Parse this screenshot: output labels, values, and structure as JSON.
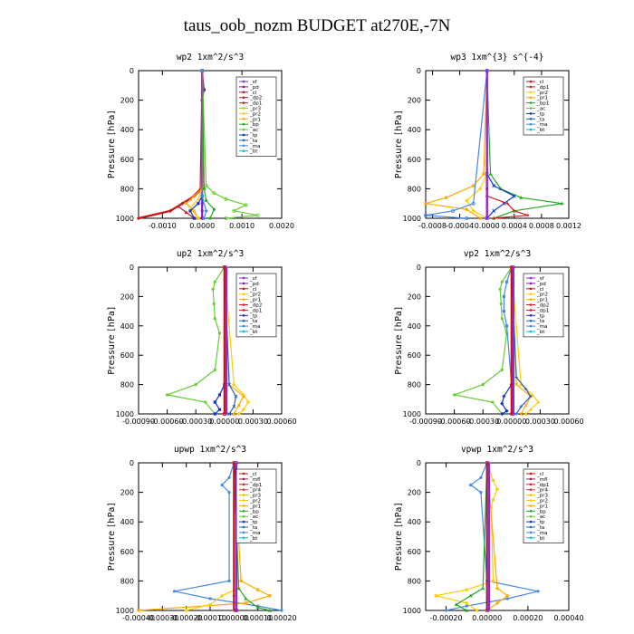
{
  "title": "taus_oob_nozm  BUDGET at270E,-7N",
  "colors": {
    "sf": "#8a2be2",
    "pd": "#7a1fa2",
    "cl": "#cc1111",
    "dp1": "#cc2222",
    "dp2": "#c81e1e",
    "pr1": "#ffaa00",
    "pr2": "#ffcc00",
    "pr3": "#e6c200",
    "pr4": "#d43f3a",
    "bp": "#22aa22",
    "ac": "#66cc33",
    "tp": "#1133cc",
    "ta": "#2266bb",
    "ma": "#4488ee",
    "bt": "#00bcd4",
    "mfl": "#9b1a5a"
  },
  "chart_data": [
    {
      "type": "line",
      "name": "wp2",
      "title": "wp2  1xm^2/s^3",
      "ylabel": "Pressure [hPa]",
      "xlim": [
        -0.0016,
        0.002
      ],
      "ylim": [
        1000,
        0
      ],
      "xticks": [
        -0.001,
        0.0,
        0.001,
        0.002
      ],
      "xtick_labels": [
        "-0.0010",
        "0.0000",
        "0.0010",
        "0.0020"
      ],
      "yticks": [
        0,
        200,
        400,
        600,
        800,
        1000
      ],
      "ytick_labels": [
        "0",
        "200",
        "400",
        "600",
        "800",
        "1000"
      ],
      "legend": [
        "_sf",
        "_pd",
        "_cl",
        "_dp2",
        "_dp1",
        "_pr3",
        "_pr2",
        "_pr1",
        "_bp",
        "_ac",
        "_tp",
        "_ta",
        "_ma",
        "_bt"
      ],
      "series": [
        {
          "key": "sf",
          "p": [
            0,
            150,
            400,
            800,
            900,
            950,
            1000
          ],
          "x": [
            0,
            0,
            0,
            0,
            0,
            0,
            0
          ]
        },
        {
          "key": "pd",
          "p": [
            0,
            130,
            200,
            800,
            1000
          ],
          "x": [
            0,
            5e-05,
            0,
            0,
            0
          ]
        },
        {
          "key": "cl",
          "p": [
            0,
            800,
            850,
            900,
            950,
            1000
          ],
          "x": [
            0,
            0,
            -0.0002,
            -0.0005,
            -0.0008,
            -0.0016
          ]
        },
        {
          "key": "dp2",
          "p": [
            0,
            800,
            870,
            920,
            960,
            1000
          ],
          "x": [
            0,
            -5e-05,
            -0.0003,
            -0.0006,
            -0.0004,
            -0.0002
          ]
        },
        {
          "key": "pr1",
          "p": [
            0,
            800,
            850,
            900,
            950,
            1000
          ],
          "x": [
            0,
            0,
            -0.0002,
            -0.0004,
            -0.0002,
            -0.0001
          ]
        },
        {
          "key": "pr2",
          "p": [
            0,
            800,
            870,
            930,
            1000
          ],
          "x": [
            0,
            0,
            -0.0001,
            -0.0003,
            -0.0001
          ]
        },
        {
          "key": "ac",
          "p": [
            0,
            780,
            830,
            870,
            910,
            950,
            980,
            1000
          ],
          "x": [
            0,
            0.0001,
            0.0003,
            0.0006,
            0.0011,
            0.0008,
            0.0014,
            0.0006
          ]
        },
        {
          "key": "bp",
          "p": [
            0,
            800,
            880,
            940,
            1000
          ],
          "x": [
            0,
            5e-05,
            0.0001,
            0.0003,
            0.0002
          ]
        },
        {
          "key": "tp",
          "p": [
            0,
            850,
            900,
            950,
            1000
          ],
          "x": [
            0,
            0,
            -0.0001,
            -0.0003,
            -0.0002
          ]
        },
        {
          "key": "ma",
          "p": [
            0,
            850,
            950,
            1000
          ],
          "x": [
            0,
            0,
            0.0001,
            5e-05
          ]
        }
      ]
    },
    {
      "type": "line",
      "name": "wp3",
      "title": "wp3  1xm^{3} s^{-4}",
      "ylabel": "Pressure [hPa]",
      "xlim": [
        -0.0009,
        0.0012
      ],
      "ylim": [
        1000,
        0
      ],
      "xticks": [
        -0.0008,
        -0.0004,
        0.0,
        0.0004,
        0.0008,
        0.0012
      ],
      "xtick_labels": [
        "-0.0008",
        "-0.0004",
        "0.0000",
        "0.0004",
        "0.0008",
        "0.0012"
      ],
      "yticks": [
        0,
        200,
        400,
        600,
        800,
        1000
      ],
      "ytick_labels": [
        "0",
        "200",
        "400",
        "600",
        "800",
        "1000"
      ],
      "legend": [
        "_cl",
        "_dp1",
        "_pr2",
        "_pr1",
        "_bp1",
        "_ac",
        "_tp",
        "_ta",
        "_ma",
        "_bt"
      ],
      "series": [
        {
          "key": "cl",
          "p": [
            0,
            800,
            1000
          ],
          "x": [
            0,
            0,
            0
          ]
        },
        {
          "key": "pr1",
          "p": [
            0,
            700,
            780,
            860,
            900,
            940,
            1000
          ],
          "x": [
            0,
            -5e-05,
            -0.0002,
            -0.0006,
            -0.0009,
            -0.0003,
            -0.0001
          ]
        },
        {
          "key": "pr2",
          "p": [
            0,
            700,
            800,
            880,
            950,
            1000
          ],
          "x": [
            0,
            0,
            -0.0001,
            -0.0003,
            -0.0002,
            0
          ]
        },
        {
          "key": "bp",
          "p": [
            0,
            700,
            800,
            860,
            900,
            950,
            1000
          ],
          "x": [
            0,
            5e-05,
            0.0002,
            0.0005,
            0.0011,
            0.0004,
            0.0001
          ]
        },
        {
          "key": "tp",
          "p": [
            0,
            700,
            780,
            850,
            900,
            950,
            1000
          ],
          "x": [
            0,
            0,
            0.0001,
            0.0004,
            0.00025,
            0.0001,
            0
          ]
        },
        {
          "key": "dp1",
          "p": [
            0,
            850,
            900,
            950,
            980,
            1000
          ],
          "x": [
            0,
            0,
            0.0003,
            0.0004,
            0.0006,
            0.0001
          ]
        },
        {
          "key": "ma",
          "p": [
            0,
            900,
            950,
            980,
            1000
          ],
          "x": [
            0,
            -0.0002,
            -0.0005,
            -0.0009,
            -0.0003
          ]
        },
        {
          "key": "sf",
          "p": [
            0,
            1000
          ],
          "x": [
            0,
            0
          ]
        }
      ]
    },
    {
      "type": "line",
      "name": "up2",
      "title": "up2  1xm^2/s^3",
      "ylabel": "Pressure [hPa]",
      "xlim": [
        -0.0009,
        0.0006
      ],
      "ylim": [
        1000,
        0
      ],
      "xticks": [
        -0.0009,
        -0.0006,
        -0.0003,
        0.0,
        0.0003,
        0.0006
      ],
      "xtick_labels": [
        "-0.00090",
        "-0.00060",
        "-0.00030",
        "0.00000",
        "0.00030",
        "0.00060"
      ],
      "yticks": [
        0,
        200,
        400,
        600,
        800,
        1000
      ],
      "ytick_labels": [
        "0",
        "200",
        "400",
        "600",
        "800",
        "1000"
      ],
      "legend": [
        "_sf",
        "_pd",
        "_cl",
        "_pr2",
        "_pr1",
        "_dp2",
        "_dp1",
        "_tp",
        "_ta",
        "_ma",
        "_bt"
      ],
      "series": [
        {
          "key": "ac",
          "p": [
            0,
            100,
            150,
            250,
            350,
            450,
            700,
            800,
            870,
            920,
            1000
          ],
          "x": [
            0,
            -0.0001,
            -0.00012,
            -0.00011,
            -0.0001,
            -5e-05,
            -0.0001,
            -0.0003,
            -0.0006,
            -0.0002,
            -0.0001
          ]
        },
        {
          "key": "tp",
          "p": [
            0,
            800,
            870,
            920,
            970,
            1000
          ],
          "x": [
            0,
            0,
            -5e-05,
            -0.0001,
            -5e-05,
            -0.0001
          ]
        },
        {
          "key": "pr2",
          "p": [
            0,
            800,
            870,
            920,
            970,
            1000
          ],
          "x": [
            0,
            0.0001,
            0.0002,
            0.00025,
            0.0002,
            0.00015
          ]
        },
        {
          "key": "pr1",
          "p": [
            0,
            800,
            880,
            940,
            1000
          ],
          "x": [
            0,
            5e-05,
            0.0002,
            0.00015,
            0.0001
          ]
        },
        {
          "key": "ta",
          "p": [
            0,
            800,
            880,
            950,
            1000
          ],
          "x": [
            0,
            5e-05,
            0.00012,
            0.0001,
            5e-05
          ]
        },
        {
          "key": "sf",
          "p": [
            0,
            1000
          ],
          "x": [
            2e-05,
            2e-05
          ]
        },
        {
          "key": "cl",
          "p": [
            0,
            1000
          ],
          "x": [
            0,
            0
          ]
        }
      ]
    },
    {
      "type": "line",
      "name": "vp2",
      "title": "vp2  1xm^2/s^3",
      "ylabel": "Pressure [hPa]",
      "xlim": [
        -0.0009,
        0.0006
      ],
      "ylim": [
        1000,
        0
      ],
      "xticks": [
        -0.0009,
        -0.0006,
        -0.0003,
        0.0,
        0.0003,
        0.0006
      ],
      "xtick_labels": [
        "-0.00090",
        "-0.00060",
        "-0.00030",
        "0.00000",
        "0.00030",
        "0.00060"
      ],
      "yticks": [
        0,
        200,
        400,
        600,
        800,
        1000
      ],
      "ytick_labels": [
        "0",
        "200",
        "400",
        "600",
        "800",
        "1000"
      ],
      "legend": [
        "_sf",
        "_pd",
        "_cl",
        "_pr2",
        "_pr1",
        "_dp2",
        "_dp1",
        "_tp",
        "_ta",
        "_ma",
        "_bt"
      ],
      "series": [
        {
          "key": "ac",
          "p": [
            0,
            100,
            150,
            250,
            350,
            450,
            700,
            800,
            870,
            920,
            1000
          ],
          "x": [
            0,
            -0.0001,
            -0.00012,
            -0.00011,
            -0.0001,
            -5e-05,
            -0.0001,
            -0.0003,
            -0.0006,
            -0.0002,
            -0.0001
          ]
        },
        {
          "key": "ma",
          "p": [
            0,
            100,
            200,
            300,
            400,
            800,
            1000
          ],
          "x": [
            0,
            -5e-05,
            -8e-05,
            -8e-05,
            -5e-05,
            0,
            0
          ]
        },
        {
          "key": "tp",
          "p": [
            0,
            800,
            880,
            930,
            980,
            1000
          ],
          "x": [
            0,
            0,
            -8e-05,
            -0.0001,
            -5e-05,
            -0.0001
          ]
        },
        {
          "key": "pr2",
          "p": [
            0,
            800,
            870,
            920,
            970,
            1000
          ],
          "x": [
            0,
            0.0001,
            0.00022,
            0.00028,
            0.0002,
            0.00015
          ]
        },
        {
          "key": "pr1",
          "p": [
            0,
            800,
            880,
            940,
            1000
          ],
          "x": [
            0,
            5e-05,
            0.0002,
            0.00015,
            0.0001
          ]
        },
        {
          "key": "ta",
          "p": [
            0,
            750,
            830,
            880,
            950,
            1000
          ],
          "x": [
            0,
            5e-05,
            0.00015,
            0.0002,
            0.0001,
            5e-05
          ]
        },
        {
          "key": "sf",
          "p": [
            0,
            1000
          ],
          "x": [
            2e-05,
            2e-05
          ]
        },
        {
          "key": "cl",
          "p": [
            0,
            1000
          ],
          "x": [
            0,
            0
          ]
        }
      ]
    },
    {
      "type": "line",
      "name": "upwp",
      "title": "upwp  1xm^2/s^3",
      "ylabel": "Pressure [hPa]",
      "xlim": [
        -0.0004,
        0.0002
      ],
      "ylim": [
        1000,
        0
      ],
      "xticks": [
        -0.0004,
        -0.0003,
        -0.0002,
        -0.0001,
        0.0,
        0.0001,
        0.0002
      ],
      "xtick_labels": [
        "-0.00040",
        "-0.00030",
        "-0.00020",
        "-0.00010",
        "0.00000",
        "0.00010",
        "0.00020"
      ],
      "yticks": [
        0,
        200,
        400,
        600,
        800,
        1000
      ],
      "ytick_labels": [
        "0",
        "200",
        "400",
        "600",
        "800",
        "1000"
      ],
      "legend": [
        "_cl",
        "_mfl",
        "_dp1",
        "_pr4",
        "_pr3",
        "_pr2",
        "_pr1",
        "_bp",
        "_ac",
        "_tp",
        "_ta",
        "_ma",
        "_bt"
      ],
      "series": [
        {
          "key": "ma",
          "p": [
            0,
            100,
            150,
            200,
            800,
            870,
            920,
            970,
            1000
          ],
          "x": [
            0,
            -2e-05,
            -5e-05,
            -2e-05,
            -2e-05,
            -0.00025,
            -0.0001,
            0.0001,
            0.0002
          ]
        },
        {
          "key": "pr1",
          "p": [
            0,
            800,
            860,
            900,
            950,
            1000
          ],
          "x": [
            0,
            3e-05,
            0.0001,
            0.00015,
            5e-05,
            -0.0004
          ]
        },
        {
          "key": "pr2",
          "p": [
            0,
            850,
            900,
            960,
            1000
          ],
          "x": [
            0,
            2e-05,
            -5e-05,
            -0.0001,
            -0.0002
          ]
        },
        {
          "key": "bp",
          "p": [
            0,
            850,
            920,
            980,
            1000
          ],
          "x": [
            0,
            2e-05,
            5e-05,
            0.0001,
            0.00015
          ]
        },
        {
          "key": "mfl",
          "p": [
            0,
            100,
            1000
          ],
          "x": [
            0,
            1e-05,
            1e-05
          ]
        },
        {
          "key": "cl",
          "p": [
            0,
            900,
            1000
          ],
          "x": [
            0,
            0,
            0
          ]
        },
        {
          "key": "sf",
          "p": [
            0,
            1000
          ],
          "x": [
            1e-05,
            1e-05
          ]
        }
      ]
    },
    {
      "type": "line",
      "name": "vpwp",
      "title": "vpwp  1xm^2/s^3",
      "ylabel": "Pressure [hPa]",
      "xlim": [
        -0.0003,
        0.0004
      ],
      "ylim": [
        1000,
        0
      ],
      "xticks": [
        -0.0002,
        0.0,
        0.0002,
        0.0004
      ],
      "xtick_labels": [
        "-0.00020",
        "0.00000",
        "0.00020",
        "0.00040"
      ],
      "yticks": [
        0,
        200,
        400,
        600,
        800,
        1000
      ],
      "ytick_labels": [
        "0",
        "200",
        "400",
        "600",
        "800",
        "1000"
      ],
      "legend": [
        "_cl",
        "_mfl",
        "_dp1",
        "_pr4",
        "_pr3",
        "_pr2",
        "_pr1",
        "_bp",
        "_ac",
        "_tp",
        "_ta",
        "_ma",
        "_bt"
      ],
      "series": [
        {
          "key": "ma",
          "p": [
            0,
            100,
            150,
            200,
            800,
            870,
            920,
            970,
            1000
          ],
          "x": [
            0,
            -3e-05,
            -8e-05,
            -3e-05,
            0,
            0.00025,
            0.0001,
            -0.0001,
            -0.0002
          ]
        },
        {
          "key": "pr2",
          "p": [
            0,
            120,
            180,
            250,
            300,
            800,
            860,
            900,
            950,
            1000
          ],
          "x": [
            0,
            3e-05,
            5e-05,
            3e-05,
            2e-05,
            3e-05,
            -0.0001,
            -0.00025,
            -0.0001,
            -5e-05
          ]
        },
        {
          "key": "pr1",
          "p": [
            0,
            850,
            900,
            950,
            1000
          ],
          "x": [
            0,
            5e-05,
            0.0001,
            5e-05,
            0
          ]
        },
        {
          "key": "bp",
          "p": [
            0,
            850,
            900,
            960,
            1000
          ],
          "x": [
            0,
            -2e-05,
            -8e-05,
            -0.00015,
            -0.0001
          ]
        },
        {
          "key": "mfl",
          "p": [
            0,
            1000
          ],
          "x": [
            0,
            0
          ]
        },
        {
          "key": "sf",
          "p": [
            0,
            1000
          ],
          "x": [
            1e-05,
            1e-05
          ]
        }
      ]
    }
  ]
}
